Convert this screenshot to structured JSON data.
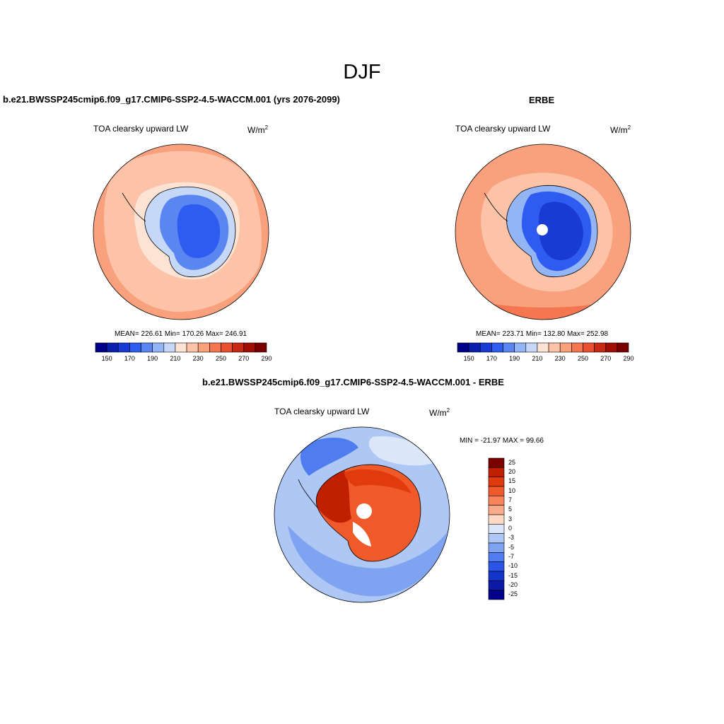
{
  "page_title": "DJF",
  "panels": [
    {
      "id": "model",
      "case_title": "b.e21.BWSSP245cmip6.f09_g17.CMIP6-SSP2-4.5-WACCM.001 (yrs 2076-2099)",
      "variable": "TOA clearsky upward LW",
      "units_base": "W/m",
      "units_sup": "2",
      "stats": "MEAN= 226.61  Min= 170.26  Max= 246.91"
    },
    {
      "id": "obs",
      "case_title": "ERBE",
      "variable": "TOA clearsky upward LW",
      "units_base": "W/m",
      "units_sup": "2",
      "stats": "MEAN= 223.71  Min= 132.80  Max= 252.98"
    },
    {
      "id": "diff",
      "case_title": "b.e21.BWSSP245cmip6.f09_g17.CMIP6-SSP2-4.5-WACCM.001 - ERBE",
      "variable": "TOA clearsky upward LW",
      "units_base": "W/m",
      "units_sup": "2",
      "stats": "MIN = -21.97 MAX =  99.66"
    }
  ],
  "colorbar_abs": {
    "colors": [
      "#00008b",
      "#0a1fb0",
      "#1a3ad4",
      "#2f5cf0",
      "#5a86f2",
      "#93b4f5",
      "#c6d8f8",
      "#fde3d4",
      "#fcc3a8",
      "#f9a07c",
      "#f57752",
      "#e8502f",
      "#c72a14",
      "#a00f05",
      "#7a0000"
    ],
    "tick_labels": [
      "150",
      "170",
      "190",
      "210",
      "230",
      "250",
      "270",
      "290"
    ]
  },
  "colorbar_diff": {
    "colors": [
      "#7a0000",
      "#c02000",
      "#e13a0c",
      "#f05a2a",
      "#f8855a",
      "#fbab8a",
      "#fdd9c6",
      "#dbe6f8",
      "#aec7f4",
      "#7ea3f0",
      "#4f7cef",
      "#2a55e8",
      "#1334c8",
      "#0a1aa5",
      "#00008b"
    ],
    "tick_labels": [
      "25",
      "20",
      "15",
      "10",
      "7",
      "5",
      "3",
      "0",
      "-3",
      "-5",
      "-7",
      "-10",
      "-15",
      "-20",
      "-25"
    ]
  }
}
